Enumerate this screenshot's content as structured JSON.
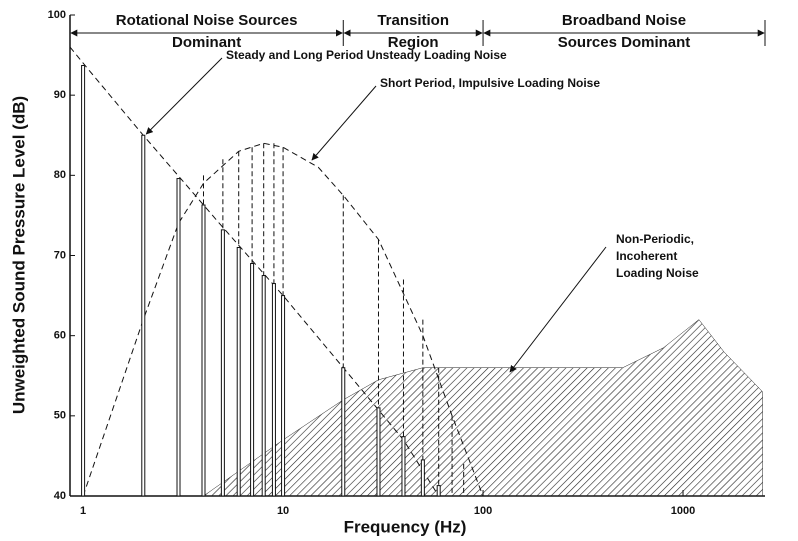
{
  "chart_data": {
    "type": "spectrum",
    "xlabel": "Frequency (Hz)",
    "ylabel": "Unweighted Sound Pressure Level (dB)",
    "xscale": "log",
    "xlim": [
      0.86,
      2570
    ],
    "ylim": [
      40,
      100
    ],
    "xticks": [
      1,
      10,
      100,
      1000
    ],
    "yticks": [
      40,
      50,
      60,
      70,
      80,
      90,
      100
    ],
    "series": [
      {
        "style": "solid-line",
        "color": "#111111",
        "x": [
          1,
          2,
          3,
          4,
          5,
          6,
          7,
          8,
          9,
          10,
          20,
          30,
          40,
          50,
          60
        ],
        "values": [
          93.7,
          85,
          79.6,
          76.3,
          73.2,
          71,
          69,
          67.5,
          66.5,
          65,
          56,
          51,
          47.4,
          44.5,
          41.3
        ]
      },
      {
        "style": "dashed-line",
        "color": "#111111",
        "x": [
          4,
          5,
          6,
          7,
          8,
          9,
          10,
          20,
          30,
          40,
          50,
          60,
          70,
          80
        ],
        "values": [
          80,
          82,
          83,
          83.5,
          84,
          84,
          83.5,
          77.5,
          72,
          67,
          62,
          56,
          50,
          44
        ]
      },
      {
        "style": "dashed-curve",
        "color": "#111111",
        "x": [
          0.86,
          1,
          2,
          5,
          10,
          20,
          40,
          60
        ],
        "values": [
          96,
          94,
          85,
          73.5,
          65,
          56,
          47,
          40
        ]
      },
      {
        "style": "dashed-curve",
        "color": "#111111",
        "x": [
          1,
          2,
          3,
          4,
          6,
          8,
          10,
          15,
          20,
          30,
          50,
          70,
          100
        ],
        "values": [
          40,
          62,
          74,
          79,
          83,
          84,
          83.5,
          81,
          77.5,
          72,
          60,
          50,
          40
        ]
      },
      {
        "style": "hatched-area",
        "color": "#222222",
        "x": [
          4,
          10,
          20,
          30,
          50,
          100,
          500,
          800,
          1200,
          1600,
          2500,
          2500
        ],
        "values": [
          40,
          47,
          52,
          54.5,
          56,
          56,
          56,
          58.5,
          62,
          58,
          53,
          40
        ]
      }
    ],
    "regions": [
      {
        "lines": [
          "Rotational Noise Sources",
          "Dominant"
        ],
        "xrange": [
          0.86,
          20
        ]
      },
      {
        "lines": [
          "Transition",
          "Region"
        ],
        "xrange": [
          20,
          100
        ]
      },
      {
        "lines": [
          "Broadband Noise",
          "Sources Dominant"
        ],
        "xrange": [
          100,
          2570
        ]
      }
    ],
    "annotations": [
      {
        "lines": [
          "Steady and Long Period Unsteady Loading Noise"
        ]
      },
      {
        "lines": [
          "Short Period, Impulsive Loading Noise"
        ]
      },
      {
        "lines": [
          "Non-Periodic,",
          "Incoherent",
          "Loading Noise"
        ]
      }
    ]
  }
}
